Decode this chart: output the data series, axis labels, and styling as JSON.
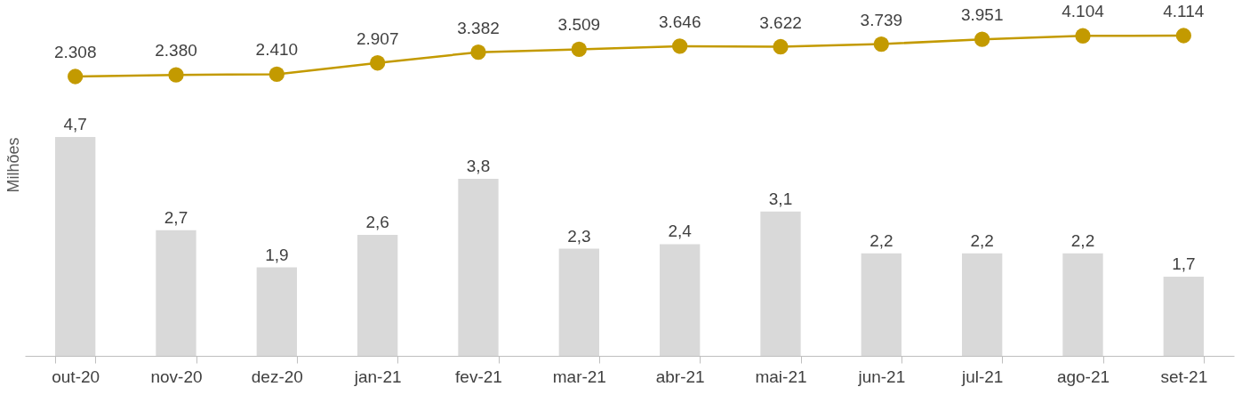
{
  "chart_data": [
    {
      "type": "line",
      "categories": [
        null,
        null,
        null,
        null,
        null,
        null,
        null,
        null,
        null,
        null,
        null,
        null
      ],
      "tick_labels": false,
      "marker": "circle",
      "series": [
        {
          "color": "#c39a00",
          "values": [
            2308,
            2380,
            2410,
            2907,
            3382,
            3509,
            3646,
            3622,
            3739,
            3951,
            4104,
            4114
          ],
          "value_labels": [
            "2.308",
            "2.380",
            "2.410",
            "2.907",
            "3.382",
            "3.509",
            "3.646",
            "3.622",
            "3.739",
            "3.951",
            "4.104",
            "4.114"
          ]
        }
      ]
    },
    {
      "type": "bar",
      "ylabel": "Milhões",
      "categories": [
        "out-20",
        "nov-20",
        "dez-20",
        "jan-21",
        "fev-21",
        "mar-21",
        "abr-21",
        "mai-21",
        "jun-21",
        "jul-21",
        "ago-21",
        "set-21"
      ],
      "tick_labels": "x",
      "series": [
        {
          "color": "#d9d9d9",
          "values": [
            4.7,
            2.7,
            1.9,
            2.6,
            3.8,
            2.3,
            2.4,
            3.1,
            2.2,
            2.2,
            2.2,
            1.7
          ],
          "value_labels": [
            "4,7",
            "2,7",
            "1,9",
            "2,6",
            "3,8",
            "2,3",
            "2,4",
            "3,1",
            "2,2",
            "2,2",
            "2,2",
            "1,7"
          ]
        }
      ]
    }
  ]
}
